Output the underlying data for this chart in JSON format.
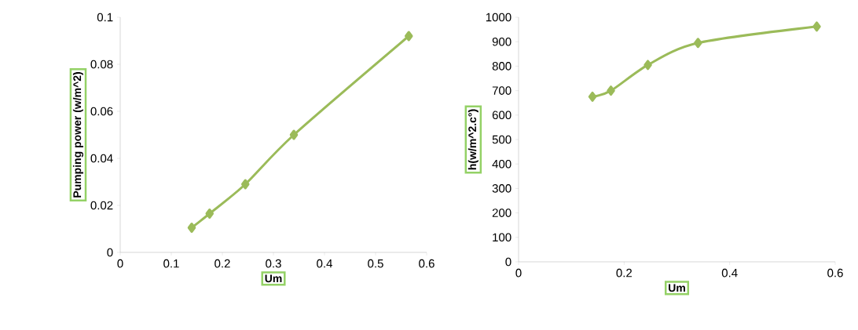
{
  "chart_data": [
    {
      "type": "line",
      "xlabel": "Um",
      "ylabel": "Pumping power (w/m^2)",
      "x": [
        0.14,
        0.175,
        0.245,
        0.34,
        0.565
      ],
      "series": [
        {
          "color": "#9bbb59",
          "values": [
            0.0105,
            0.0165,
            0.029,
            0.05,
            0.092
          ]
        }
      ],
      "xlim": [
        0,
        0.6
      ],
      "xticks": [
        0,
        0.1,
        0.2,
        0.3,
        0.4,
        0.5,
        0.6
      ],
      "ylim": [
        0,
        0.1
      ],
      "yticks": [
        0,
        0.02,
        0.04,
        0.06,
        0.08,
        0.1
      ],
      "marker": "diamond",
      "grid": false
    },
    {
      "type": "line",
      "xlabel": "Um",
      "ylabel": "h(w/m^2.c°)",
      "x": [
        0.14,
        0.175,
        0.245,
        0.34,
        0.565
      ],
      "series": [
        {
          "color": "#9bbb59",
          "values": [
            675,
            700,
            805,
            895,
            962
          ]
        }
      ],
      "xlim": [
        0,
        0.6
      ],
      "xticks": [
        0,
        0.2,
        0.4,
        0.6
      ],
      "ylim": [
        0,
        1000
      ],
      "yticks": [
        0,
        100,
        200,
        300,
        400,
        500,
        600,
        700,
        800,
        900,
        1000
      ],
      "marker": "diamond",
      "grid": false
    }
  ]
}
